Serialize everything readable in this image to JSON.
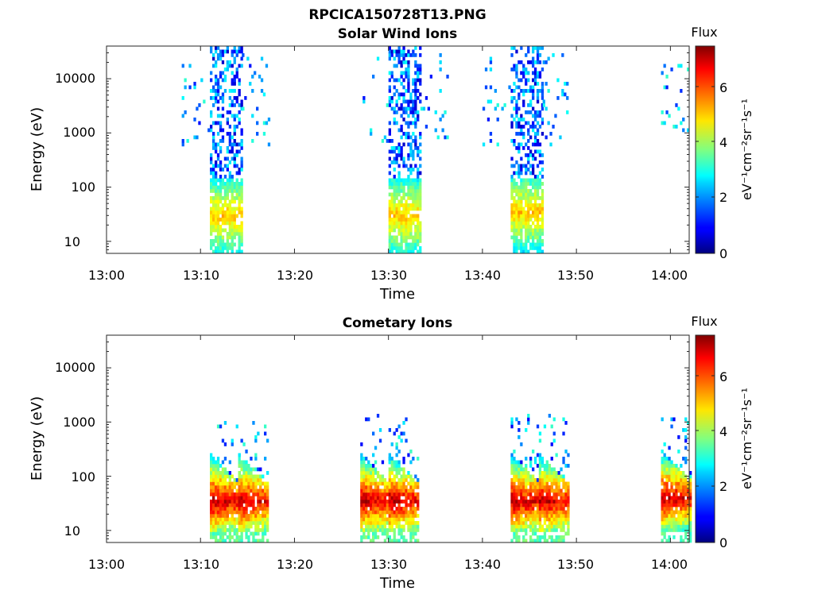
{
  "figure": {
    "title": "RPCICA150728T13.PNG"
  },
  "panels": [
    {
      "title": "Solar Wind Ions",
      "xlabel": "Time",
      "ylabel": "Energy (eV)",
      "colorbar_title": "Flux",
      "colorbar_label": "eV⁻¹cm⁻²sr⁻¹s⁻¹",
      "x_ticks": [
        "13:00",
        "13:10",
        "13:20",
        "13:30",
        "13:40",
        "13:50",
        "14:00"
      ],
      "y_ticks": [
        "10",
        "100",
        "1000",
        "10000"
      ],
      "cb_ticks": [
        "0",
        "2",
        "4",
        "6"
      ]
    },
    {
      "title": "Cometary Ions",
      "xlabel": "Time",
      "ylabel": "Energy (eV)",
      "colorbar_title": "Flux",
      "colorbar_label": "eV⁻¹cm⁻²sr⁻¹s⁻¹",
      "x_ticks": [
        "13:00",
        "13:10",
        "13:20",
        "13:30",
        "13:40",
        "13:50",
        "14:00"
      ],
      "y_ticks": [
        "10",
        "100",
        "1000",
        "10000"
      ],
      "cb_ticks": [
        "0",
        "2",
        "4",
        "6"
      ]
    }
  ],
  "chart_data": [
    {
      "type": "heatmap",
      "title": "Solar Wind Ions",
      "xlabel": "Time",
      "ylabel": "Energy (eV)",
      "x_range": [
        "13:00",
        "14:02"
      ],
      "y_range": [
        6,
        40000
      ],
      "y_scale": "log",
      "colorbar": {
        "label": "Flux",
        "range": [
          0,
          7.3
        ],
        "colormap": "jet"
      },
      "bursts": [
        {
          "t_start": "13:11",
          "t_end": "13:14",
          "peak_energy_eV": 30,
          "peak_flux": 5,
          "sparse_extent_eV": [
            6,
            40000
          ]
        },
        {
          "t_start": "13:30",
          "t_end": "13:33",
          "peak_energy_eV": 30,
          "peak_flux": 5,
          "sparse_extent_eV": [
            6,
            40000
          ]
        },
        {
          "t_start": "13:43",
          "t_end": "13:46",
          "peak_energy_eV": 35,
          "peak_flux": 5,
          "sparse_extent_eV": [
            6,
            40000
          ]
        }
      ]
    },
    {
      "type": "heatmap",
      "title": "Cometary Ions",
      "xlabel": "Time",
      "ylabel": "Energy (eV)",
      "x_range": [
        "13:00",
        "14:02"
      ],
      "y_range": [
        6,
        40000
      ],
      "y_scale": "log",
      "colorbar": {
        "label": "Flux",
        "range": [
          0,
          7.3
        ],
        "colormap": "jet"
      },
      "bursts": [
        {
          "t_start": "13:11",
          "t_end": "13:14",
          "peak_energy_eV": 35,
          "peak_flux": 7
        },
        {
          "t_start": "13:14",
          "t_end": "13:17",
          "peak_energy_eV": 35,
          "peak_flux": 7
        },
        {
          "t_start": "13:27",
          "t_end": "13:30",
          "peak_energy_eV": 35,
          "peak_flux": 7
        },
        {
          "t_start": "13:30",
          "t_end": "13:33",
          "peak_energy_eV": 35,
          "peak_flux": 7
        },
        {
          "t_start": "13:43",
          "t_end": "13:46",
          "peak_energy_eV": 35,
          "peak_flux": 7
        },
        {
          "t_start": "13:46",
          "t_end": "13:49",
          "peak_energy_eV": 35,
          "peak_flux": 7
        },
        {
          "t_start": "13:59",
          "t_end": "14:02",
          "peak_energy_eV": 40,
          "peak_flux": 7
        }
      ]
    }
  ]
}
